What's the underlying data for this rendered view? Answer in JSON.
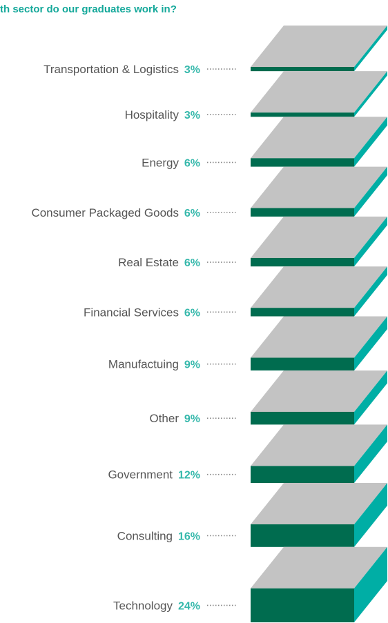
{
  "chart_data": {
    "type": "bar",
    "title": "th sector do our graduates work in?",
    "categories": [
      "Transportation & Logistics",
      "Hospitality",
      "Energy",
      "Consumer Packaged Goods",
      "Real Estate",
      "Financial Services",
      "Manufactuing",
      "Other",
      "Government",
      "Consulting",
      "Technology"
    ],
    "values": [
      3,
      3,
      6,
      6,
      6,
      6,
      9,
      9,
      12,
      16,
      24
    ],
    "value_labels": [
      "3%",
      "3%",
      "6%",
      "6%",
      "6%",
      "6%",
      "9%",
      "9%",
      "12%",
      "16%",
      "24%"
    ],
    "unit": "%",
    "xlabel": "",
    "ylabel": "",
    "legend": "none",
    "grid": false
  },
  "colors": {
    "front": "#006c4f",
    "top": "#c3c3c3",
    "side": "#00aea5",
    "title": "#14a89a",
    "percent": "#35b8ab",
    "label": "#555555",
    "leader": "#888888"
  }
}
